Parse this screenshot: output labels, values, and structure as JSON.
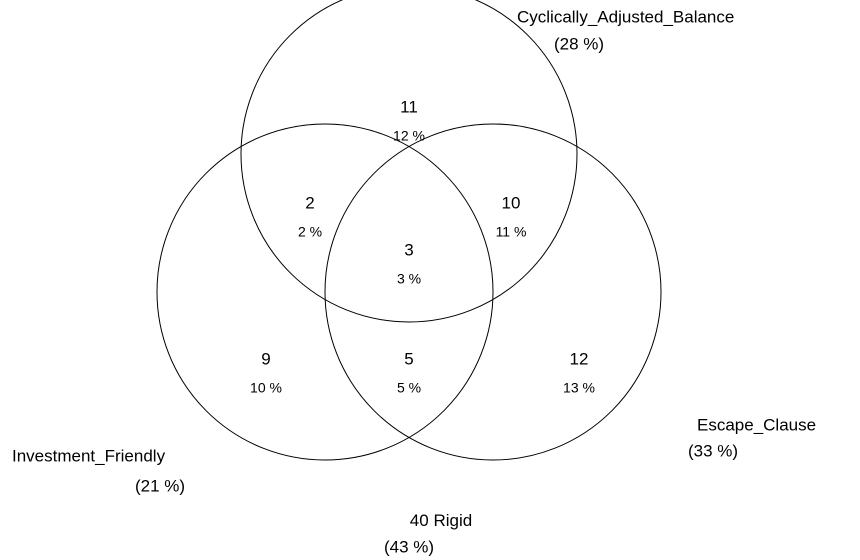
{
  "sets": [
    {
      "name": "Cyclically_Adjusted_Balance",
      "percent": "(28 %)"
    },
    {
      "name": "Investment_Friendly",
      "percent": "(21 %)"
    },
    {
      "name": "Escape_Clause",
      "percent": "(33 %)"
    }
  ],
  "regions": [
    {
      "count": "11",
      "percent": "12 %"
    },
    {
      "count": "2",
      "percent": "2 %"
    },
    {
      "count": "10",
      "percent": "11 %"
    },
    {
      "count": "3",
      "percent": "3 %"
    },
    {
      "count": "9",
      "percent": "10 %"
    },
    {
      "count": "5",
      "percent": "5 %"
    },
    {
      "count": "12",
      "percent": "13 %"
    }
  ],
  "outside": {
    "count": "40",
    "name": "Rigid",
    "percent": "(43 %)"
  }
}
